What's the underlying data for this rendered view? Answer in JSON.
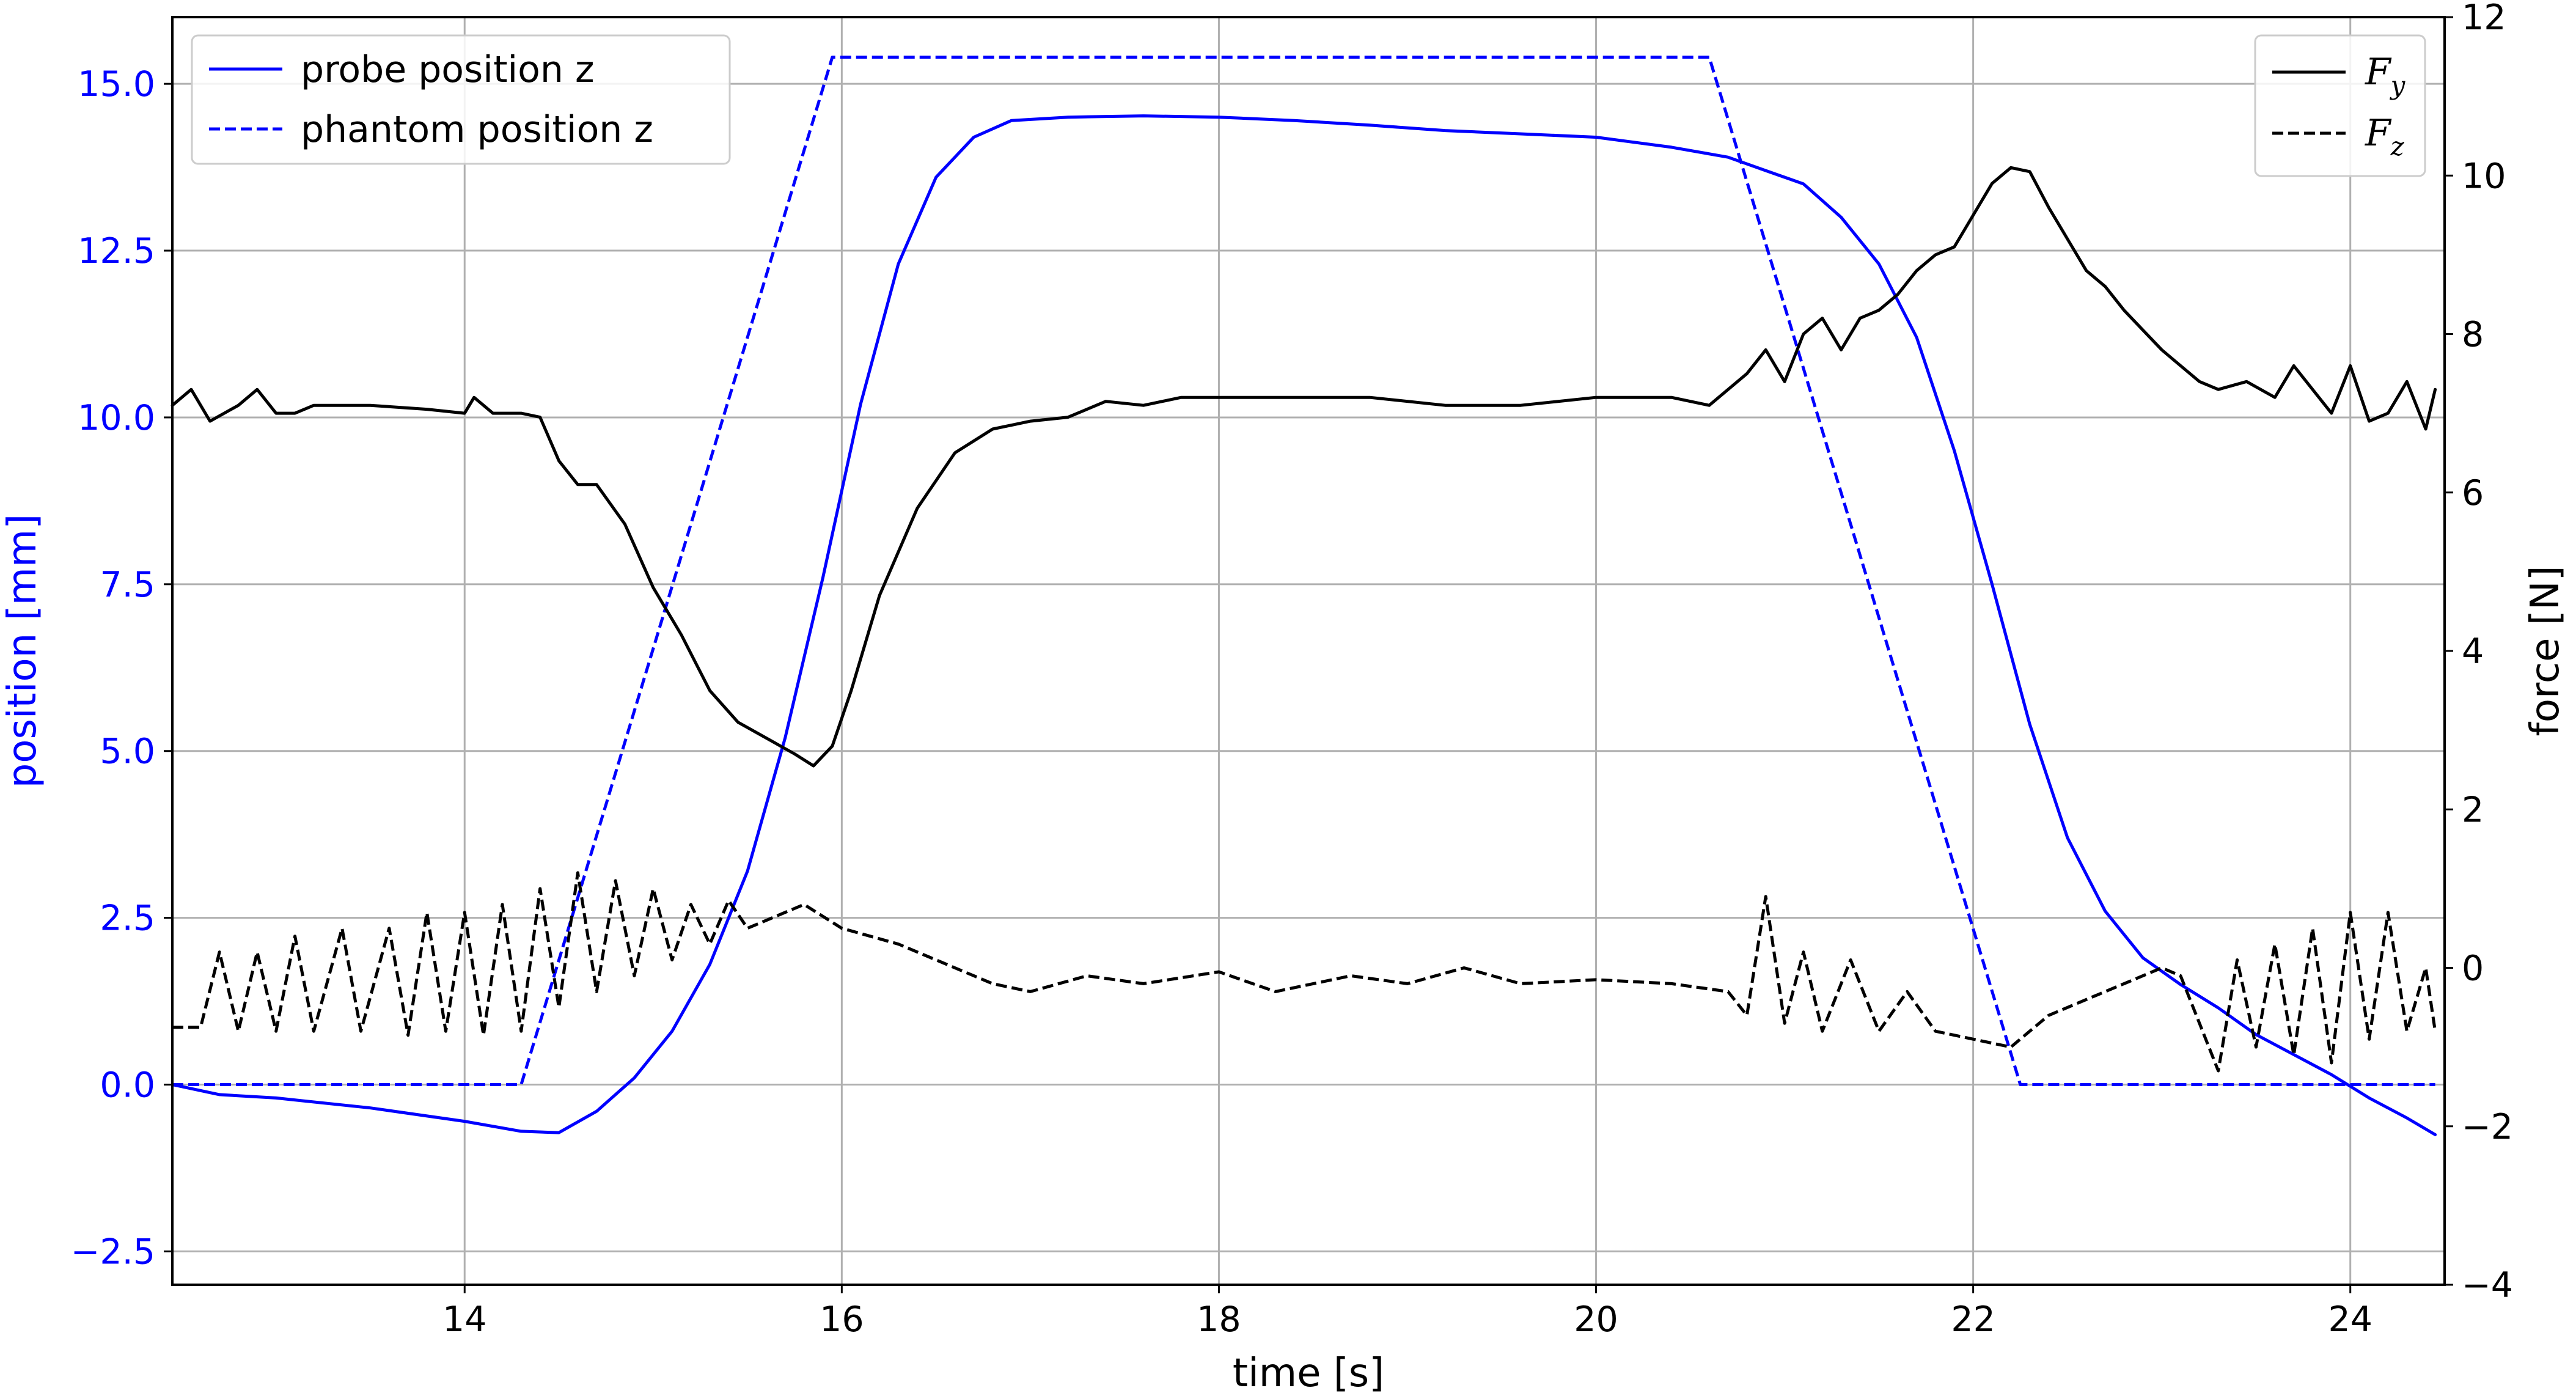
{
  "chart_data": {
    "type": "line",
    "xlabel": "time [s]",
    "ylabel_left": "position [mm]",
    "ylabel_right": "force [N]",
    "xlim": [
      12.45,
      24.5
    ],
    "ylim_left": [
      -3.0,
      16.0
    ],
    "ylim_right": [
      -4,
      12
    ],
    "x_ticks": [
      "14",
      "16",
      "18",
      "20",
      "22",
      "24"
    ],
    "y_left_ticks": [
      "−2.5",
      "0.0",
      "2.5",
      "5.0",
      "7.5",
      "10.0",
      "12.5",
      "15.0"
    ],
    "y_right_ticks": [
      "−4",
      "−2",
      "0",
      "2",
      "4",
      "6",
      "8",
      "10",
      "12"
    ],
    "grid": true,
    "colors": {
      "position": "#0000ff",
      "force": "#000000",
      "grid": "#b0b0b0"
    },
    "legend_left": {
      "placement": "top-left",
      "entries": [
        {
          "label": "probe position z",
          "style": "solid"
        },
        {
          "label": "phantom position z",
          "style": "dashed"
        }
      ]
    },
    "legend_right": {
      "placement": "top-right",
      "entries": [
        {
          "base": "F",
          "sub": "y",
          "style": "solid"
        },
        {
          "base": "F",
          "sub": "z",
          "style": "dashed"
        }
      ]
    },
    "series": [
      {
        "axis": "left",
        "style": "solid",
        "color": "#0000ff",
        "points": [
          [
            12.45,
            0.0
          ],
          [
            12.7,
            -0.15
          ],
          [
            13.0,
            -0.2
          ],
          [
            13.5,
            -0.35
          ],
          [
            14.0,
            -0.55
          ],
          [
            14.3,
            -0.7
          ],
          [
            14.5,
            -0.72
          ],
          [
            14.7,
            -0.4
          ],
          [
            14.9,
            0.1
          ],
          [
            15.1,
            0.8
          ],
          [
            15.3,
            1.8
          ],
          [
            15.5,
            3.2
          ],
          [
            15.7,
            5.2
          ],
          [
            15.9,
            7.6
          ],
          [
            16.1,
            10.2
          ],
          [
            16.3,
            12.3
          ],
          [
            16.5,
            13.6
          ],
          [
            16.7,
            14.2
          ],
          [
            16.9,
            14.45
          ],
          [
            17.2,
            14.5
          ],
          [
            17.6,
            14.52
          ],
          [
            18.0,
            14.5
          ],
          [
            18.4,
            14.45
          ],
          [
            18.8,
            14.38
          ],
          [
            19.2,
            14.3
          ],
          [
            19.6,
            14.25
          ],
          [
            20.0,
            14.2
          ],
          [
            20.4,
            14.05
          ],
          [
            20.7,
            13.9
          ],
          [
            20.9,
            13.7
          ],
          [
            21.1,
            13.5
          ],
          [
            21.3,
            13.0
          ],
          [
            21.5,
            12.3
          ],
          [
            21.7,
            11.2
          ],
          [
            21.9,
            9.5
          ],
          [
            22.1,
            7.5
          ],
          [
            22.3,
            5.4
          ],
          [
            22.5,
            3.7
          ],
          [
            22.7,
            2.6
          ],
          [
            22.9,
            1.9
          ],
          [
            23.1,
            1.5
          ],
          [
            23.3,
            1.15
          ],
          [
            23.5,
            0.75
          ],
          [
            23.7,
            0.45
          ],
          [
            23.9,
            0.15
          ],
          [
            24.1,
            -0.2
          ],
          [
            24.3,
            -0.5
          ],
          [
            24.45,
            -0.75
          ]
        ]
      },
      {
        "axis": "left",
        "style": "dashed",
        "color": "#0000ff",
        "points": [
          [
            12.45,
            0.0
          ],
          [
            14.3,
            0.0
          ],
          [
            15.95,
            15.4
          ],
          [
            20.6,
            15.4
          ],
          [
            22.25,
            0.0
          ],
          [
            24.45,
            0.0
          ]
        ]
      },
      {
        "axis": "right",
        "style": "solid",
        "color": "#000000",
        "points": [
          [
            12.45,
            7.1
          ],
          [
            12.55,
            7.3
          ],
          [
            12.65,
            6.9
          ],
          [
            12.8,
            7.1
          ],
          [
            12.9,
            7.3
          ],
          [
            13.0,
            7.0
          ],
          [
            13.1,
            7.0
          ],
          [
            13.2,
            7.1
          ],
          [
            13.5,
            7.1
          ],
          [
            13.8,
            7.05
          ],
          [
            14.0,
            7.0
          ],
          [
            14.05,
            7.2
          ],
          [
            14.15,
            7.0
          ],
          [
            14.3,
            7.0
          ],
          [
            14.4,
            6.95
          ],
          [
            14.5,
            6.4
          ],
          [
            14.6,
            6.1
          ],
          [
            14.7,
            6.1
          ],
          [
            14.85,
            5.6
          ],
          [
            15.0,
            4.8
          ],
          [
            15.15,
            4.2
          ],
          [
            15.3,
            3.5
          ],
          [
            15.45,
            3.1
          ],
          [
            15.6,
            2.9
          ],
          [
            15.75,
            2.7
          ],
          [
            15.85,
            2.55
          ],
          [
            15.95,
            2.8
          ],
          [
            16.05,
            3.5
          ],
          [
            16.2,
            4.7
          ],
          [
            16.4,
            5.8
          ],
          [
            16.6,
            6.5
          ],
          [
            16.8,
            6.8
          ],
          [
            17.0,
            6.9
          ],
          [
            17.2,
            6.95
          ],
          [
            17.4,
            7.15
          ],
          [
            17.6,
            7.1
          ],
          [
            17.8,
            7.2
          ],
          [
            18.0,
            7.2
          ],
          [
            18.4,
            7.2
          ],
          [
            18.8,
            7.2
          ],
          [
            19.2,
            7.1
          ],
          [
            19.6,
            7.1
          ],
          [
            20.0,
            7.2
          ],
          [
            20.4,
            7.2
          ],
          [
            20.6,
            7.1
          ],
          [
            20.8,
            7.5
          ],
          [
            20.9,
            7.8
          ],
          [
            21.0,
            7.4
          ],
          [
            21.1,
            8.0
          ],
          [
            21.2,
            8.2
          ],
          [
            21.3,
            7.8
          ],
          [
            21.4,
            8.2
          ],
          [
            21.5,
            8.3
          ],
          [
            21.6,
            8.5
          ],
          [
            21.7,
            8.8
          ],
          [
            21.8,
            9.0
          ],
          [
            21.9,
            9.1
          ],
          [
            22.0,
            9.5
          ],
          [
            22.1,
            9.9
          ],
          [
            22.2,
            10.1
          ],
          [
            22.3,
            10.05
          ],
          [
            22.4,
            9.6
          ],
          [
            22.5,
            9.2
          ],
          [
            22.6,
            8.8
          ],
          [
            22.7,
            8.6
          ],
          [
            22.8,
            8.3
          ],
          [
            22.9,
            8.05
          ],
          [
            23.0,
            7.8
          ],
          [
            23.1,
            7.6
          ],
          [
            23.2,
            7.4
          ],
          [
            23.3,
            7.3
          ],
          [
            23.45,
            7.4
          ],
          [
            23.6,
            7.2
          ],
          [
            23.7,
            7.6
          ],
          [
            23.8,
            7.3
          ],
          [
            23.9,
            7.0
          ],
          [
            24.0,
            7.6
          ],
          [
            24.1,
            6.9
          ],
          [
            24.2,
            7.0
          ],
          [
            24.3,
            7.4
          ],
          [
            24.4,
            6.8
          ],
          [
            24.45,
            7.3
          ]
        ]
      },
      {
        "axis": "right",
        "style": "dashed",
        "color": "#000000",
        "points": [
          [
            12.45,
            -0.75
          ],
          [
            12.6,
            -0.75
          ],
          [
            12.7,
            0.2
          ],
          [
            12.8,
            -0.8
          ],
          [
            12.9,
            0.2
          ],
          [
            13.0,
            -0.8
          ],
          [
            13.1,
            0.4
          ],
          [
            13.2,
            -0.8
          ],
          [
            13.35,
            0.5
          ],
          [
            13.45,
            -0.8
          ],
          [
            13.6,
            0.5
          ],
          [
            13.7,
            -0.85
          ],
          [
            13.8,
            0.7
          ],
          [
            13.9,
            -0.8
          ],
          [
            14.0,
            0.7
          ],
          [
            14.1,
            -0.85
          ],
          [
            14.2,
            0.8
          ],
          [
            14.3,
            -0.8
          ],
          [
            14.4,
            1.0
          ],
          [
            14.5,
            -0.5
          ],
          [
            14.6,
            1.2
          ],
          [
            14.7,
            -0.3
          ],
          [
            14.8,
            1.1
          ],
          [
            14.9,
            -0.1
          ],
          [
            15.0,
            1.0
          ],
          [
            15.1,
            0.1
          ],
          [
            15.2,
            0.8
          ],
          [
            15.3,
            0.3
          ],
          [
            15.4,
            0.85
          ],
          [
            15.5,
            0.5
          ],
          [
            15.8,
            0.8
          ],
          [
            16.0,
            0.5
          ],
          [
            16.3,
            0.3
          ],
          [
            16.6,
            0.0
          ],
          [
            16.8,
            -0.2
          ],
          [
            17.0,
            -0.3
          ],
          [
            17.3,
            -0.1
          ],
          [
            17.6,
            -0.2
          ],
          [
            18.0,
            -0.05
          ],
          [
            18.3,
            -0.3
          ],
          [
            18.7,
            -0.1
          ],
          [
            19.0,
            -0.2
          ],
          [
            19.3,
            0.0
          ],
          [
            19.6,
            -0.2
          ],
          [
            20.0,
            -0.15
          ],
          [
            20.4,
            -0.2
          ],
          [
            20.7,
            -0.3
          ],
          [
            20.8,
            -0.6
          ],
          [
            20.9,
            0.9
          ],
          [
            21.0,
            -0.7
          ],
          [
            21.1,
            0.2
          ],
          [
            21.2,
            -0.8
          ],
          [
            21.35,
            0.1
          ],
          [
            21.5,
            -0.8
          ],
          [
            21.65,
            -0.3
          ],
          [
            21.8,
            -0.8
          ],
          [
            22.0,
            -0.9
          ],
          [
            22.2,
            -1.0
          ],
          [
            22.4,
            -0.6
          ],
          [
            22.6,
            -0.4
          ],
          [
            22.8,
            -0.2
          ],
          [
            23.0,
            0.0
          ],
          [
            23.1,
            -0.1
          ],
          [
            23.2,
            -0.7
          ],
          [
            23.3,
            -1.3
          ],
          [
            23.4,
            0.1
          ],
          [
            23.5,
            -1.0
          ],
          [
            23.6,
            0.3
          ],
          [
            23.7,
            -1.1
          ],
          [
            23.8,
            0.5
          ],
          [
            23.9,
            -1.2
          ],
          [
            24.0,
            0.7
          ],
          [
            24.1,
            -0.9
          ],
          [
            24.2,
            0.7
          ],
          [
            24.3,
            -0.8
          ],
          [
            24.4,
            0.0
          ],
          [
            24.45,
            -0.8
          ]
        ]
      }
    ]
  }
}
